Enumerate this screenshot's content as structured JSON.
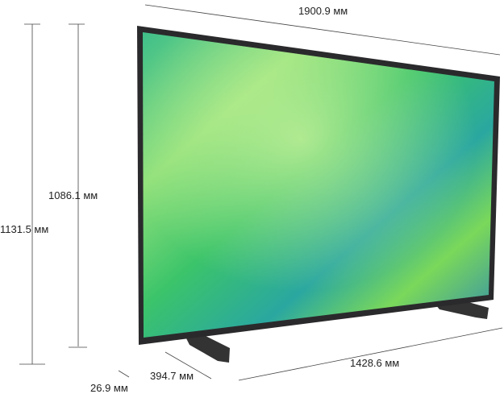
{
  "dimensions": {
    "width_total": "1900.9 мм",
    "height_with_stand": "1131.5 мм",
    "height_without_stand": "1086.1 мм",
    "stand_depth": "394.7 мм",
    "panel_depth": "26.9 мм",
    "stand_width": "1428.6 мм"
  },
  "colors": {
    "frame": "#2a2a2c",
    "screen_green": "#5fd36a",
    "screen_blue": "#2a8fb8"
  }
}
